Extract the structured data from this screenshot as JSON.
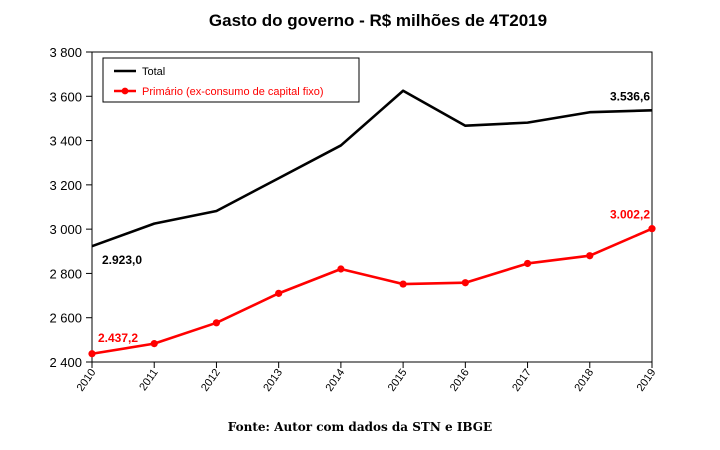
{
  "caption": "Fonte: Autor com dados da STN e IBGE",
  "chart_data": {
    "type": "line",
    "title": "Gasto do governo - R$ milhões de 4T2019",
    "xlabel": "",
    "ylabel": "",
    "x": [
      "2010",
      "2011",
      "2012",
      "2013",
      "2014",
      "2015",
      "2016",
      "2017",
      "2018",
      "2019"
    ],
    "ylim": [
      2400,
      3800
    ],
    "yticks": [
      2400,
      2600,
      2800,
      3000,
      3200,
      3400,
      3600,
      3800
    ],
    "ytick_labels": [
      "2 400",
      "2 600",
      "2 800",
      "3 000",
      "3 200",
      "3 400",
      "3 600",
      "3 800"
    ],
    "grid": false,
    "legend_position": "top-left",
    "series": [
      {
        "name": "Total",
        "color": "#000000",
        "markers": false,
        "values": [
          2923.0,
          3025,
          3082,
          3230,
          3378,
          3625,
          3467,
          3481,
          3528,
          3536.6
        ]
      },
      {
        "name": "Primário (ex-consumo de capital fixo)",
        "color": "#ff0000",
        "markers": true,
        "values": [
          2437.2,
          2483,
          2577,
          2710,
          2820,
          2752,
          2758,
          2845,
          2880,
          3002.2
        ]
      }
    ],
    "annotations": [
      {
        "text": "2.923,0",
        "series": 0,
        "index": 0,
        "color": "#000000"
      },
      {
        "text": "3.536,6",
        "series": 0,
        "index": 9,
        "color": "#000000"
      },
      {
        "text": "2.437,2",
        "series": 1,
        "index": 0,
        "color": "#ff0000"
      },
      {
        "text": "3.002,2",
        "series": 1,
        "index": 9,
        "color": "#ff0000"
      }
    ]
  }
}
